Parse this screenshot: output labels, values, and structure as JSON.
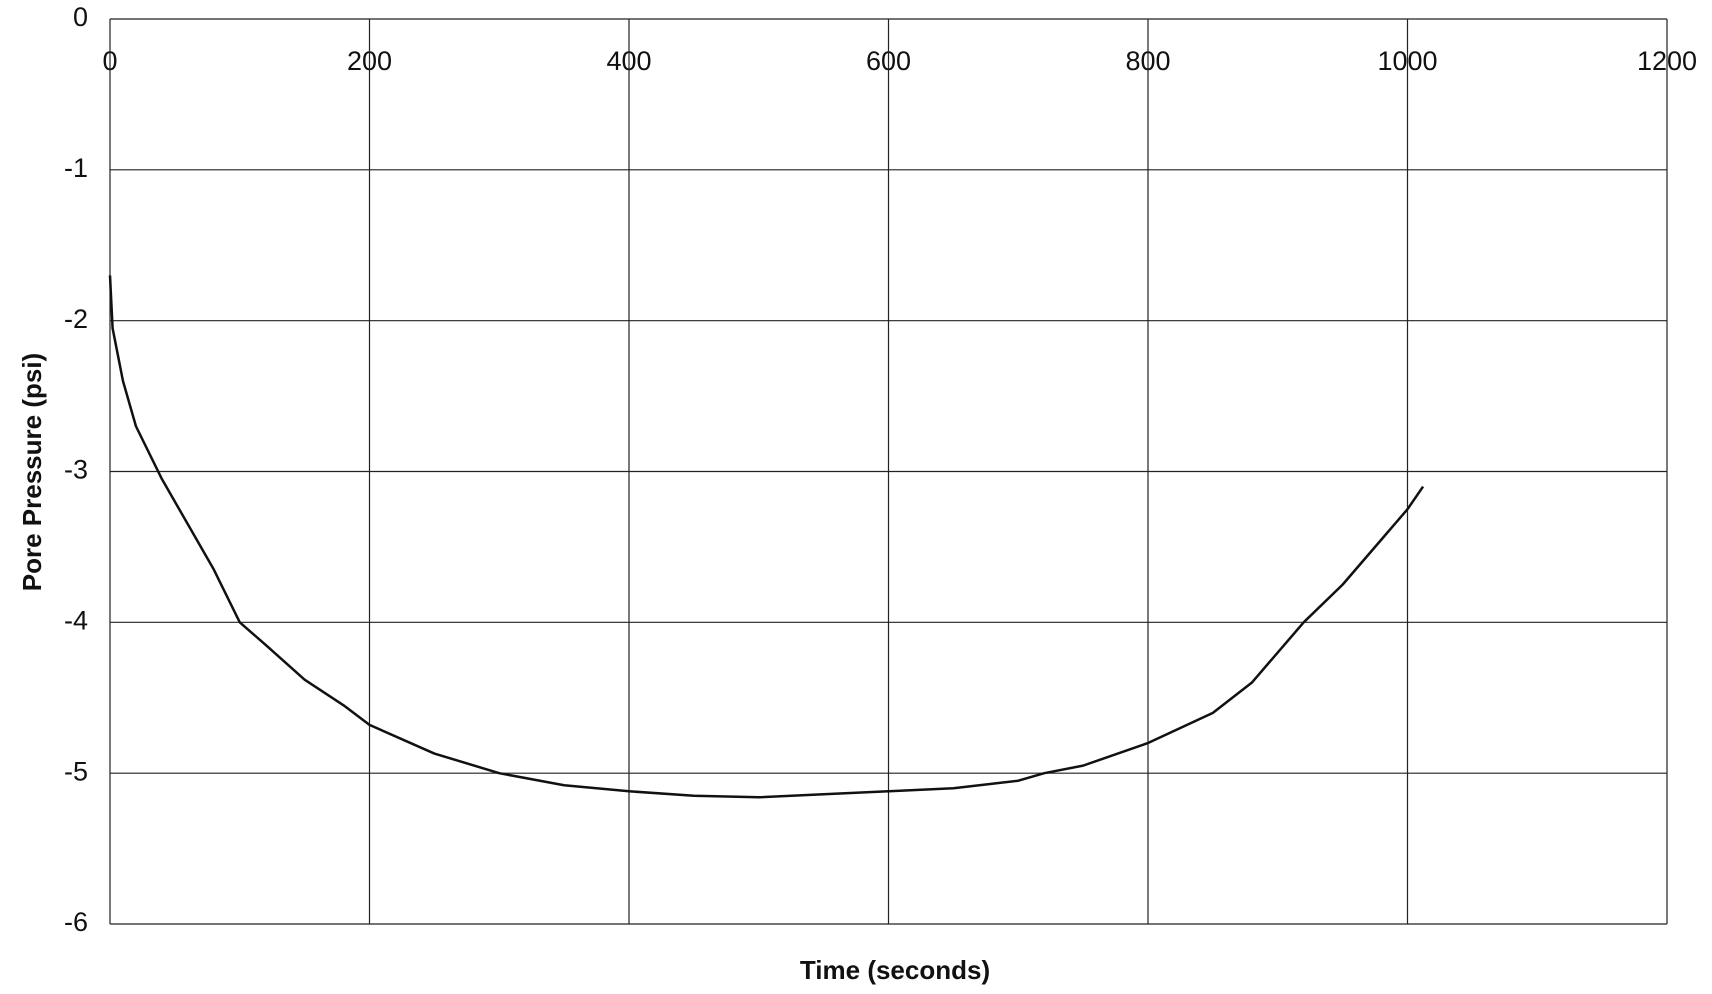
{
  "chart_data": {
    "type": "line",
    "x_label": "Time (seconds)",
    "y_label": "Pore Pressure (psi)",
    "xlim": [
      0,
      1200
    ],
    "xticks": [
      0,
      200,
      400,
      600,
      800,
      1000,
      1200
    ],
    "ylim": [
      -6,
      0
    ],
    "yticks": [
      0,
      -1,
      -2,
      -3,
      -4,
      -5,
      -6
    ],
    "grid": true,
    "series": [
      {
        "color": "#111111",
        "x": [
          0,
          2,
          10,
          20,
          40,
          60,
          80,
          100,
          120,
          150,
          180,
          200,
          250,
          300,
          350,
          400,
          450,
          500,
          550,
          600,
          650,
          700,
          720,
          750,
          800,
          850,
          880,
          920,
          950,
          980,
          1000,
          1012
        ],
        "values": [
          -1.7,
          -2.05,
          -2.4,
          -2.7,
          -3.05,
          -3.35,
          -3.65,
          -4.0,
          -4.15,
          -4.38,
          -4.55,
          -4.68,
          -4.87,
          -5.0,
          -5.08,
          -5.12,
          -5.15,
          -5.16,
          -5.14,
          -5.12,
          -5.1,
          -5.05,
          -5.0,
          -4.95,
          -4.8,
          -4.6,
          -4.4,
          -4.0,
          -3.75,
          -3.45,
          -3.25,
          -3.1
        ]
      }
    ]
  }
}
